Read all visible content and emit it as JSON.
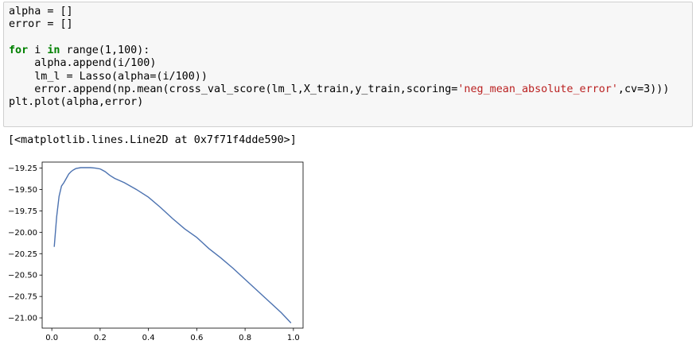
{
  "code_cell": {
    "lines": [
      [
        {
          "t": "alpha = []",
          "c": ""
        }
      ],
      [
        {
          "t": "error = []",
          "c": ""
        }
      ],
      [
        {
          "t": "",
          "c": ""
        }
      ],
      [
        {
          "t": "for",
          "c": "kw"
        },
        {
          "t": " i ",
          "c": ""
        },
        {
          "t": "in",
          "c": "kw"
        },
        {
          "t": " range(1,100):",
          "c": ""
        }
      ],
      [
        {
          "t": "    alpha.append(i/100)",
          "c": ""
        }
      ],
      [
        {
          "t": "    lm_l = Lasso(alpha=(i/100))",
          "c": ""
        }
      ],
      [
        {
          "t": "    error.append(np.mean(cross_val_score(lm_l,X_train,y_train,scoring=",
          "c": ""
        },
        {
          "t": "'neg_mean_absolute_error'",
          "c": "str"
        },
        {
          "t": ",cv=3)))",
          "c": ""
        }
      ],
      [
        {
          "t": "plt.plot(alpha,error)",
          "c": ""
        }
      ]
    ]
  },
  "output": {
    "repr_text": "[<matplotlib.lines.Line2D at 0x7f71f4dde590>]"
  },
  "colors": {
    "line": "#4c72b0",
    "keyword": "#008000",
    "string": "#ba2121"
  },
  "chart_data": {
    "type": "line",
    "title": "",
    "xlabel": "",
    "ylabel": "",
    "xlim": [
      -0.04,
      1.04
    ],
    "ylim": [
      -21.12,
      -19.18
    ],
    "xticks": [
      0.0,
      0.2,
      0.4,
      0.6,
      0.8,
      1.0
    ],
    "xtick_labels": [
      "0.0",
      "0.2",
      "0.4",
      "0.6",
      "0.8",
      "1.0"
    ],
    "yticks": [
      -19.25,
      -19.5,
      -19.75,
      -20.0,
      -20.25,
      -20.5,
      -20.75,
      -21.0
    ],
    "ytick_labels": [
      "−19.25",
      "−19.50",
      "−19.75",
      "−20.00",
      "−20.25",
      "−20.50",
      "−20.75",
      "−21.00"
    ],
    "grid": false,
    "series": [
      {
        "x": [
          0.01,
          0.02,
          0.03,
          0.04,
          0.05,
          0.06,
          0.07,
          0.08,
          0.09,
          0.1,
          0.12,
          0.14,
          0.16,
          0.18,
          0.2,
          0.22,
          0.24,
          0.26,
          0.3,
          0.35,
          0.4,
          0.45,
          0.5,
          0.55,
          0.6,
          0.65,
          0.7,
          0.75,
          0.8,
          0.85,
          0.9,
          0.95,
          0.99
        ],
        "y": [
          -20.17,
          -19.82,
          -19.58,
          -19.46,
          -19.42,
          -19.37,
          -19.32,
          -19.29,
          -19.27,
          -19.255,
          -19.245,
          -19.245,
          -19.245,
          -19.25,
          -19.26,
          -19.29,
          -19.335,
          -19.37,
          -19.42,
          -19.5,
          -19.59,
          -19.71,
          -19.84,
          -19.96,
          -20.06,
          -20.19,
          -20.3,
          -20.42,
          -20.55,
          -20.68,
          -20.81,
          -20.94,
          -21.06
        ]
      }
    ]
  }
}
